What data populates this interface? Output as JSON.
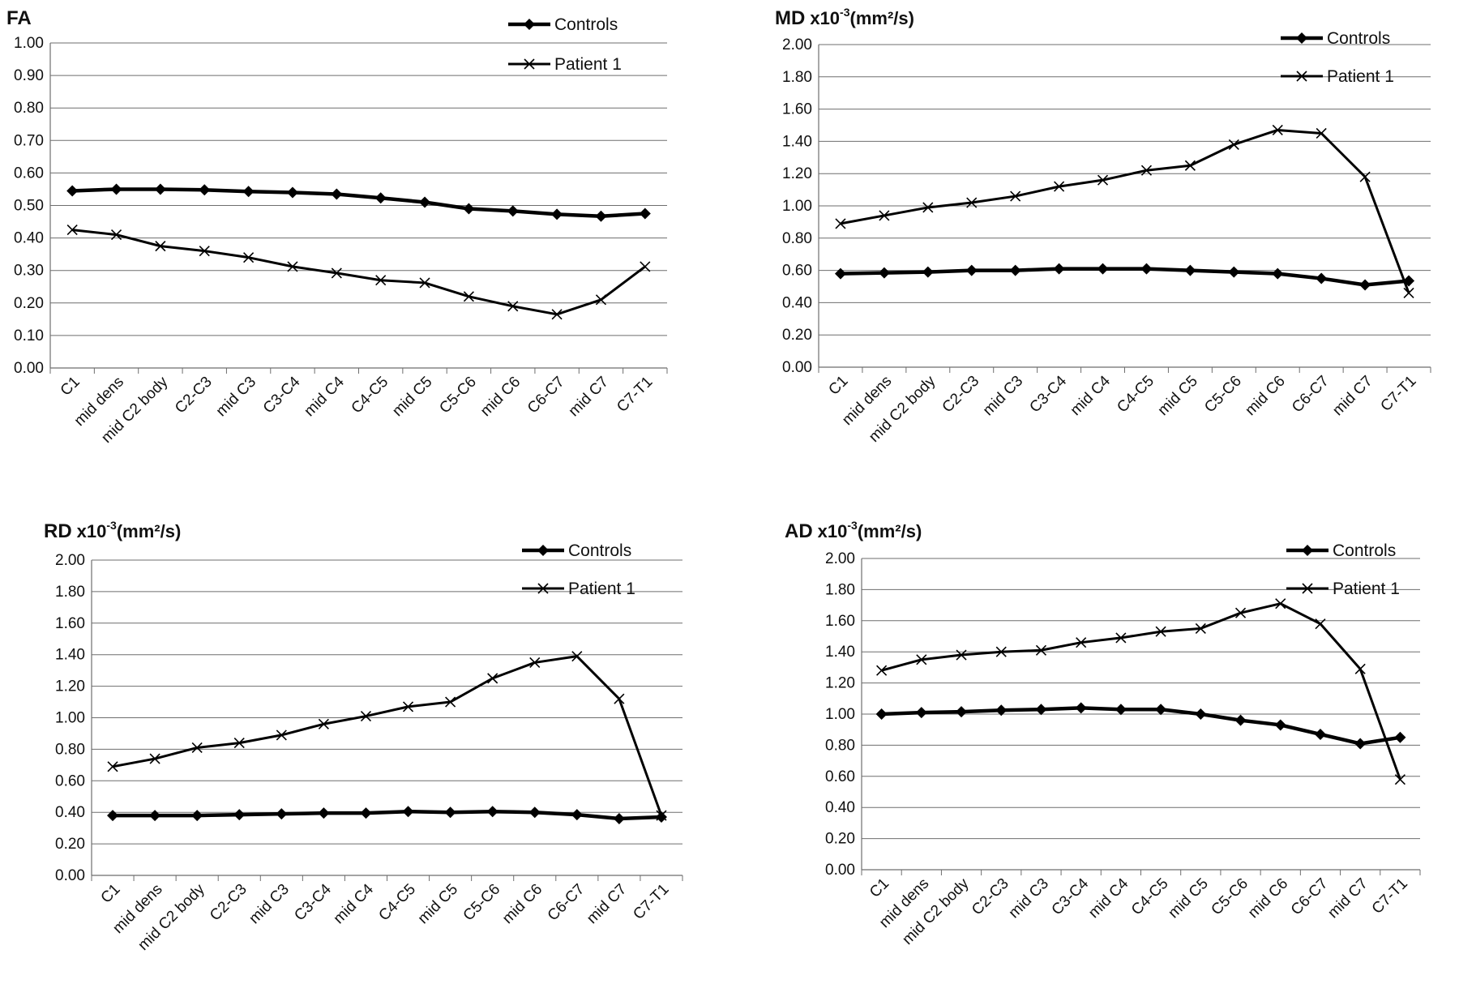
{
  "chart_data": [
    {
      "type": "line",
      "title": "FA",
      "title_sup": "",
      "title_units": "",
      "categories": [
        "C1",
        "mid dens",
        "mid C2 body",
        "C2-C3",
        "mid C3",
        "C3-C4",
        "mid C4",
        "C4-C5",
        "mid C5",
        "C5-C6",
        "mid C6",
        "C6-C7",
        "mid C7",
        "C7-T1"
      ],
      "ylim": [
        0,
        1.0
      ],
      "yticks": [
        "0.00",
        "0.10",
        "0.20",
        "0.30",
        "0.40",
        "0.50",
        "0.60",
        "0.70",
        "0.80",
        "0.90",
        "1.00"
      ],
      "grid": true,
      "legend_position": "top-right",
      "series": [
        {
          "name": "Controls",
          "marker": "diamond",
          "values": [
            0.545,
            0.55,
            0.55,
            0.548,
            0.543,
            0.54,
            0.535,
            0.523,
            0.51,
            0.49,
            0.483,
            0.473,
            0.467,
            0.475
          ]
        },
        {
          "name": "Patient 1",
          "marker": "x",
          "values": [
            0.425,
            0.41,
            0.375,
            0.36,
            0.34,
            0.312,
            0.292,
            0.27,
            0.262,
            0.22,
            0.19,
            0.165,
            0.21,
            0.312
          ]
        }
      ]
    },
    {
      "type": "line",
      "title": "MD",
      "title_sup": "-3",
      "title_units": "(mm²/s)",
      "categories": [
        "C1",
        "mid dens",
        "mid C2 body",
        "C2-C3",
        "mid C3",
        "C3-C4",
        "mid C4",
        "C4-C5",
        "mid C5",
        "C5-C6",
        "mid C6",
        "C6-C7",
        "mid C7",
        "C7-T1"
      ],
      "ylim": [
        0,
        2.0
      ],
      "yticks": [
        "0.00",
        "0.20",
        "0.40",
        "0.60",
        "0.80",
        "1.00",
        "1.20",
        "1.40",
        "1.60",
        "1.80",
        "2.00"
      ],
      "grid": true,
      "legend_position": "top-right",
      "series": [
        {
          "name": "Controls",
          "marker": "diamond",
          "values": [
            0.58,
            0.585,
            0.59,
            0.6,
            0.6,
            0.61,
            0.61,
            0.61,
            0.6,
            0.59,
            0.58,
            0.55,
            0.51,
            0.535
          ]
        },
        {
          "name": "Patient 1",
          "marker": "x",
          "values": [
            0.89,
            0.94,
            0.99,
            1.02,
            1.06,
            1.12,
            1.16,
            1.22,
            1.25,
            1.38,
            1.47,
            1.45,
            1.18,
            0.46
          ]
        }
      ]
    },
    {
      "type": "line",
      "title": "RD",
      "title_sup": "-3",
      "title_units": "(mm²/s)",
      "categories": [
        "C1",
        "mid dens",
        "mid C2 body",
        "C2-C3",
        "mid C3",
        "C3-C4",
        "mid C4",
        "C4-C5",
        "mid C5",
        "C5-C6",
        "mid C6",
        "C6-C7",
        "mid C7",
        "C7-T1"
      ],
      "ylim": [
        0,
        2.0
      ],
      "yticks": [
        "0.00",
        "0.20",
        "0.40",
        "0.60",
        "0.80",
        "1.00",
        "1.20",
        "1.40",
        "1.60",
        "1.80",
        "2.00"
      ],
      "grid": true,
      "legend_position": "top-right",
      "series": [
        {
          "name": "Controls",
          "marker": "diamond",
          "values": [
            0.38,
            0.38,
            0.38,
            0.385,
            0.39,
            0.395,
            0.395,
            0.405,
            0.4,
            0.405,
            0.4,
            0.385,
            0.36,
            0.37
          ]
        },
        {
          "name": "Patient 1",
          "marker": "x",
          "values": [
            0.69,
            0.74,
            0.81,
            0.84,
            0.89,
            0.96,
            1.01,
            1.07,
            1.1,
            1.25,
            1.35,
            1.39,
            1.12,
            0.38
          ]
        }
      ]
    },
    {
      "type": "line",
      "title": "AD",
      "title_sup": "-3",
      "title_units": "(mm²/s)",
      "categories": [
        "C1",
        "mid dens",
        "mid C2 body",
        "C2-C3",
        "mid C3",
        "C3-C4",
        "mid C4",
        "C4-C5",
        "mid C5",
        "C5-C6",
        "mid C6",
        "C6-C7",
        "mid C7",
        "C7-T1"
      ],
      "ylim": [
        0,
        2.0
      ],
      "yticks": [
        "0.00",
        "0.20",
        "0.40",
        "0.60",
        "0.80",
        "1.00",
        "1.20",
        "1.40",
        "1.60",
        "1.80",
        "2.00"
      ],
      "grid": true,
      "legend_position": "top-right",
      "series": [
        {
          "name": "Controls",
          "marker": "diamond",
          "values": [
            1.0,
            1.01,
            1.015,
            1.025,
            1.03,
            1.04,
            1.03,
            1.03,
            1.0,
            0.96,
            0.93,
            0.87,
            0.81,
            0.85
          ]
        },
        {
          "name": "Patient 1",
          "marker": "x",
          "values": [
            1.28,
            1.35,
            1.38,
            1.4,
            1.41,
            1.46,
            1.49,
            1.53,
            1.55,
            1.65,
            1.71,
            1.58,
            1.29,
            0.58
          ]
        }
      ]
    }
  ]
}
